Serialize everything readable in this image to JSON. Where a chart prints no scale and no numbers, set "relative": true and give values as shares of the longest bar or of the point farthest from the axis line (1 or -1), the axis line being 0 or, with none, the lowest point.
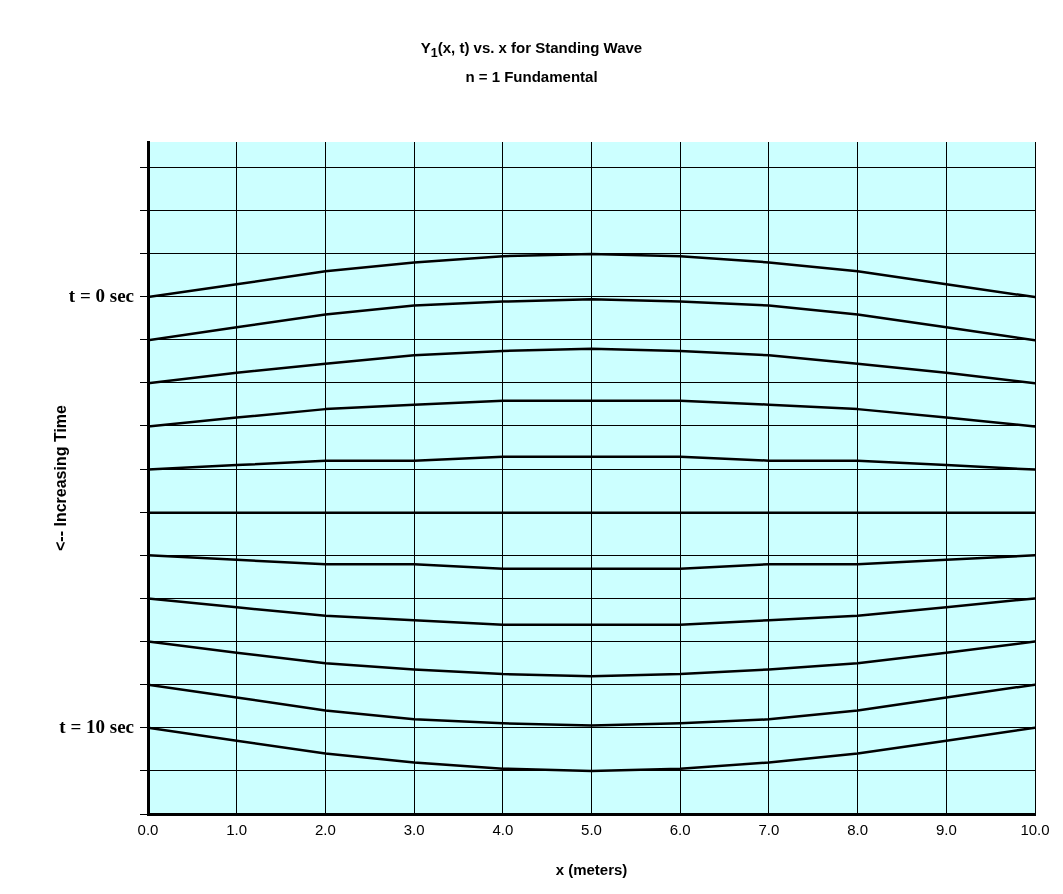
{
  "chart_data": {
    "type": "line",
    "title": "Y$_{1}$(x, t) vs. x for Standing Wave",
    "subtitle": "n = 1 Fundamental",
    "xlabel": "x (meters)",
    "ylabel": "<-- Increasing Time",
    "x": [
      0,
      1,
      2,
      3,
      4,
      5,
      6,
      7,
      8,
      9,
      10
    ],
    "xlim": [
      0,
      10
    ],
    "xticks": [
      {
        "value": 0,
        "label": "0.0"
      },
      {
        "value": 1,
        "label": "1.0"
      },
      {
        "value": 2,
        "label": "2.0"
      },
      {
        "value": 3,
        "label": "3.0"
      },
      {
        "value": 4,
        "label": "4.0"
      },
      {
        "value": 5,
        "label": "5.0"
      },
      {
        "value": 6,
        "label": "6.0"
      },
      {
        "value": 7,
        "label": "7.0"
      },
      {
        "value": 8,
        "label": "8.0"
      },
      {
        "value": 9,
        "label": "9.0"
      },
      {
        "value": 10,
        "label": "10.0"
      }
    ],
    "relative": true,
    "annotations": [
      {
        "text": "t = 0 sec",
        "x": 0,
        "y": 0.923
      },
      {
        "text": "t = 10 sec",
        "x": 0,
        "y": 0.154
      }
    ],
    "grid": true,
    "marker": "none",
    "line_style": "solid",
    "series": [
      {
        "color": "#000000",
        "values": [
          0.923,
          0.946,
          0.969,
          0.985,
          0.996,
          1,
          0.996,
          0.985,
          0.969,
          0.946,
          0.923
        ]
      },
      {
        "color": "#000000",
        "values": [
          0.846,
          0.869,
          0.892,
          0.908,
          0.915,
          0.919,
          0.915,
          0.908,
          0.892,
          0.869,
          0.846
        ]
      },
      {
        "color": "#000000",
        "values": [
          0.769,
          0.788,
          0.804,
          0.819,
          0.827,
          0.831,
          0.827,
          0.819,
          0.804,
          0.788,
          0.769
        ]
      },
      {
        "color": "#000000",
        "values": [
          0.692,
          0.708,
          0.723,
          0.731,
          0.738,
          0.738,
          0.738,
          0.731,
          0.723,
          0.708,
          0.692
        ]
      },
      {
        "color": "#000000",
        "values": [
          0.615,
          0.623,
          0.631,
          0.631,
          0.638,
          0.638,
          0.638,
          0.631,
          0.631,
          0.623,
          0.615
        ]
      },
      {
        "color": "#000000",
        "values": [
          0.538,
          0.538,
          0.538,
          0.538,
          0.538,
          0.538,
          0.538,
          0.538,
          0.538,
          0.538,
          0.538
        ]
      },
      {
        "color": "#000000",
        "values": [
          0.462,
          0.454,
          0.446,
          0.446,
          0.438,
          0.438,
          0.438,
          0.446,
          0.446,
          0.454,
          0.462
        ]
      },
      {
        "color": "#000000",
        "values": [
          0.385,
          0.369,
          0.354,
          0.346,
          0.338,
          0.338,
          0.338,
          0.346,
          0.354,
          0.369,
          0.385
        ]
      },
      {
        "color": "#000000",
        "values": [
          0.308,
          0.288,
          0.269,
          0.258,
          0.25,
          0.246,
          0.25,
          0.258,
          0.269,
          0.288,
          0.308
        ]
      },
      {
        "color": "#000000",
        "values": [
          0.231,
          0.208,
          0.185,
          0.169,
          0.162,
          0.158,
          0.162,
          0.169,
          0.185,
          0.208,
          0.231
        ]
      },
      {
        "color": "#000000",
        "values": [
          0.154,
          0.131,
          0.108,
          0.092,
          0.081,
          0.077,
          0.081,
          0.092,
          0.108,
          0.131,
          0.154
        ]
      }
    ]
  }
}
